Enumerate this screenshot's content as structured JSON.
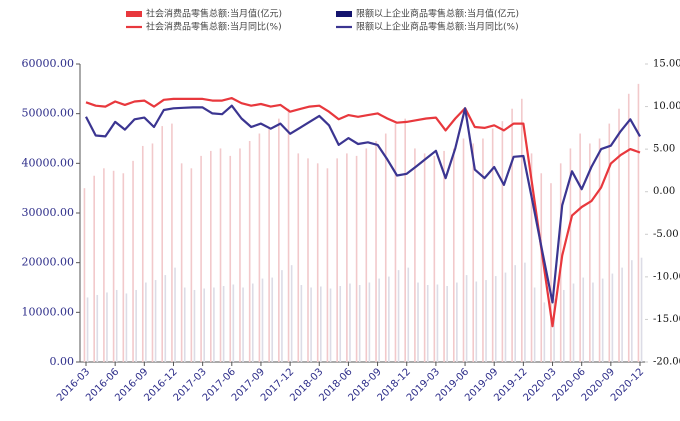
{
  "chart_data": {
    "type": "bar-line",
    "categories": [
      "2016-03",
      null,
      null,
      "2016-06",
      null,
      null,
      "2016-09",
      null,
      null,
      "2016-12",
      null,
      null,
      "2017-03",
      null,
      null,
      "2017-06",
      null,
      null,
      "2017-09",
      null,
      null,
      "2017-12",
      null,
      null,
      "2018-03",
      null,
      null,
      "2018-06",
      null,
      null,
      "2018-09",
      null,
      null,
      "2018-12",
      null,
      null,
      "2019-03",
      null,
      null,
      "2019-06",
      null,
      null,
      "2019-09",
      null,
      null,
      "2019-12",
      null,
      null,
      "2020-03",
      null,
      null,
      "2020-06",
      null,
      null,
      "2020-09",
      null,
      null,
      "2020-12"
    ],
    "series": [
      {
        "name": "社会消费品零售总额:当月值(亿元)",
        "kind": "bar",
        "color": "#f2c9cb",
        "values": [
          35000,
          37500,
          39000,
          38500,
          38000,
          40500,
          43500,
          44000,
          47500,
          48000,
          40000,
          39000,
          41500,
          42500,
          43000,
          41500,
          43000,
          44500,
          46000,
          47000,
          49000,
          51000,
          42000,
          41000,
          40000,
          39000,
          41000,
          42000,
          41500,
          43000,
          44500,
          46000,
          48000,
          49000,
          43000,
          42000,
          41500,
          42500,
          43000,
          45000,
          44000,
          45000,
          47000,
          48500,
          51000,
          53000,
          42000,
          38000,
          36000,
          40000,
          43000,
          46000,
          44000,
          45000,
          48000,
          51000,
          54000,
          56000
        ]
      },
      {
        "name": "限额以上企业商品零售总额:当月值(亿元)",
        "kind": "bar",
        "color": "#dcdce6",
        "values": [
          13000,
          13500,
          14000,
          14500,
          13800,
          14500,
          16000,
          16500,
          17500,
          19000,
          15000,
          14500,
          14800,
          15000,
          15300,
          15600,
          15000,
          15800,
          16800,
          17000,
          18500,
          19500,
          15500,
          15000,
          15200,
          14800,
          15300,
          15800,
          15500,
          16000,
          16800,
          17200,
          18500,
          19000,
          16000,
          15500,
          15600,
          15300,
          16000,
          17500,
          16200,
          16500,
          17300,
          18000,
          19500,
          20000,
          15000,
          12000,
          12800,
          14500,
          15800,
          17000,
          16000,
          16800,
          17800,
          19000,
          20500,
          21000
        ]
      },
      {
        "name": "社会消费品零售总额:当月同比(%)",
        "kind": "line",
        "axis": "y2",
        "color": "#e8383d",
        "values": [
          10.5,
          10.1,
          10.0,
          10.6,
          10.2,
          10.6,
          10.7,
          10.0,
          10.8,
          10.9,
          10.9,
          10.9,
          10.9,
          10.7,
          10.7,
          11.0,
          10.4,
          10.1,
          10.3,
          10.0,
          10.2,
          9.4,
          9.7,
          10.0,
          10.1,
          9.4,
          8.5,
          9.0,
          8.8,
          9.0,
          9.2,
          8.6,
          8.1,
          8.2,
          8.4,
          8.6,
          8.7,
          7.2,
          8.6,
          9.8,
          7.6,
          7.5,
          7.8,
          7.2,
          8.0,
          8.0,
          0.1,
          -7.9,
          -15.8,
          -7.5,
          -2.8,
          -1.8,
          -1.1,
          0.5,
          3.3,
          4.3,
          5.0,
          4.6
        ]
      },
      {
        "name": "限额以上企业商品零售总额:当月同比(%)",
        "kind": "line",
        "axis": "y2",
        "color": "#3b3591",
        "values": [
          8.8,
          6.6,
          6.5,
          8.2,
          7.3,
          8.5,
          8.7,
          7.6,
          9.6,
          9.8,
          9.85,
          9.9,
          9.9,
          9.2,
          9.1,
          10.1,
          8.6,
          7.6,
          8.0,
          7.4,
          8.0,
          6.8,
          7.5,
          8.2,
          8.9,
          7.8,
          5.5,
          6.3,
          5.6,
          5.8,
          5.5,
          3.8,
          1.9,
          2.1,
          3.0,
          3.9,
          4.8,
          1.6,
          5.1,
          9.8,
          2.6,
          1.6,
          2.9,
          0.8,
          4.1,
          4.2,
          -1.5,
          -7.3,
          -13.0,
          -1.6,
          2.4,
          0.3,
          2.9,
          5.0,
          5.4,
          7.1,
          8.5,
          6.5
        ]
      }
    ],
    "ylim": [
      0,
      60000
    ],
    "yticks": [
      {
        "value": 0,
        "label": "0.00"
      },
      {
        "value": 10000,
        "label": "10000.00"
      },
      {
        "value": 20000,
        "label": "20000.00"
      },
      {
        "value": 30000,
        "label": "30000.00"
      },
      {
        "value": 40000,
        "label": "40000.00"
      },
      {
        "value": 50000,
        "label": "50000.00"
      },
      {
        "value": 60000,
        "label": "60000.00"
      }
    ],
    "y2lim": [
      -20,
      15
    ],
    "y2ticks": [
      {
        "value": -20,
        "label": "-20.00"
      },
      {
        "value": -15,
        "label": "-15.00"
      },
      {
        "value": -10,
        "label": "-10.00"
      },
      {
        "value": -5,
        "label": "-5.00"
      },
      {
        "value": 0,
        "label": "0.00"
      },
      {
        "value": 5,
        "label": "5.00"
      },
      {
        "value": 10,
        "label": "10.00"
      },
      {
        "value": 15,
        "label": "15.00"
      }
    ],
    "legend": "top",
    "grid": false
  }
}
